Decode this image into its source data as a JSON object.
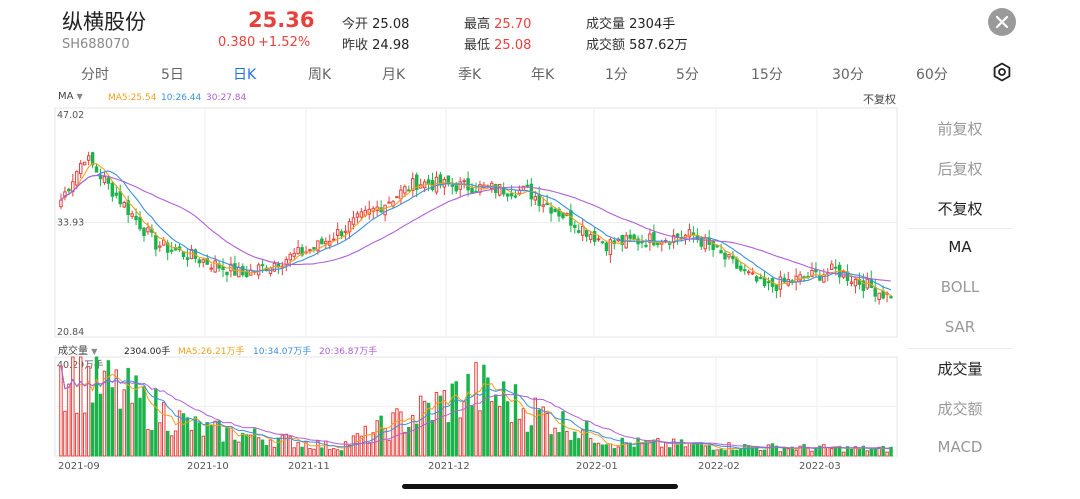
{
  "header": {
    "stock_name": "纵横股份",
    "stock_code": "SH688070",
    "price": "25.36",
    "change": "0.380",
    "change_pct": "+1.52%",
    "stats": [
      {
        "label": "今开",
        "value": "25.08",
        "color": "#222222"
      },
      {
        "label": "昨收",
        "value": "24.98",
        "color": "#222222"
      },
      {
        "label": "最高",
        "value": "25.70",
        "color": "#e8413d"
      },
      {
        "label": "最低",
        "value": "25.08",
        "color": "#e8413d"
      },
      {
        "label": "成交量",
        "value": "2304手",
        "color": "#222222"
      },
      {
        "label": "成交额",
        "value": "587.62万",
        "color": "#222222"
      }
    ]
  },
  "close_icon": "close-icon",
  "settings_icon": "gear-icon",
  "tabs": [
    "分时",
    "5日",
    "日K",
    "周K",
    "月K",
    "季K",
    "年K",
    "1分",
    "5分",
    "15分",
    "30分",
    "60分"
  ],
  "active_tab": "日K",
  "kline": {
    "indicator_select": "MA",
    "ma5": "MA5:25.54",
    "ma10": "10:26.44",
    "ma30": "30:27.84",
    "adjust": "不复权",
    "y_top": "47.02",
    "y_mid": "33.93",
    "y_bot": "20.84"
  },
  "volume": {
    "indicator_select": "成交量",
    "current": "2304.00手",
    "ma5": "MA5:26.21万手",
    "ma10": "10:34.07万手",
    "ma20": "20:36.87万手",
    "y_top": "40.29万手"
  },
  "x_labels": [
    "2021-09",
    "2021-10",
    "2021-11",
    "2021-12",
    "2022-01",
    "2022-02",
    "2022-03"
  ],
  "side_panel": {
    "adjust_options": [
      "前复权",
      "后复权",
      "不复权"
    ],
    "active_adjust": "不复权",
    "main_indicators": [
      "MA",
      "BOLL",
      "SAR"
    ],
    "active_main": "MA",
    "sub_indicators": [
      "成交量",
      "成交额",
      "MACD"
    ],
    "active_sub": "成交量"
  },
  "colors": {
    "up": "#e8413d",
    "down": "#1bb34a",
    "ma5": "#f0a020",
    "ma10": "#3d8fe0",
    "ma30": "#b060d8",
    "active_tab": "#2470e8"
  },
  "chart_data": {
    "type": "candlestick",
    "x": [
      "2021-09",
      "2021-10",
      "2021-11",
      "2021-12",
      "2022-01",
      "2022-02",
      "2022-03"
    ],
    "y_range": [
      20.84,
      47.02
    ],
    "close_keypoints": [
      {
        "date": "2021-09",
        "close": 36.5
      },
      {
        "date": "2021-09",
        "close": 41.5
      },
      {
        "date": "2021-10",
        "close": 31.5
      },
      {
        "date": "2021-11",
        "close": 28.0
      },
      {
        "date": "2021-11",
        "close": 31.0
      },
      {
        "date": "2021-12",
        "close": 38.5
      },
      {
        "date": "2021-12",
        "close": 37.5
      },
      {
        "date": "2022-01",
        "close": 31.5
      },
      {
        "date": "2022-01",
        "close": 32.5
      },
      {
        "date": "2022-02",
        "close": 26.5
      },
      {
        "date": "2022-03",
        "close": 28.5
      },
      {
        "date": "2022-03",
        "close": 25.36
      }
    ],
    "volume_keypoints": [
      {
        "date": "2021-09",
        "volume": 40.29
      },
      {
        "date": "2021-10",
        "volume": 12.0
      },
      {
        "date": "2021-11",
        "volume": 4.0
      },
      {
        "date": "2021-12",
        "volume": 30.0
      },
      {
        "date": "2022-01",
        "volume": 6.0
      },
      {
        "date": "2022-02",
        "volume": 4.0
      },
      {
        "date": "2022-03",
        "volume": 3.0
      }
    ]
  }
}
